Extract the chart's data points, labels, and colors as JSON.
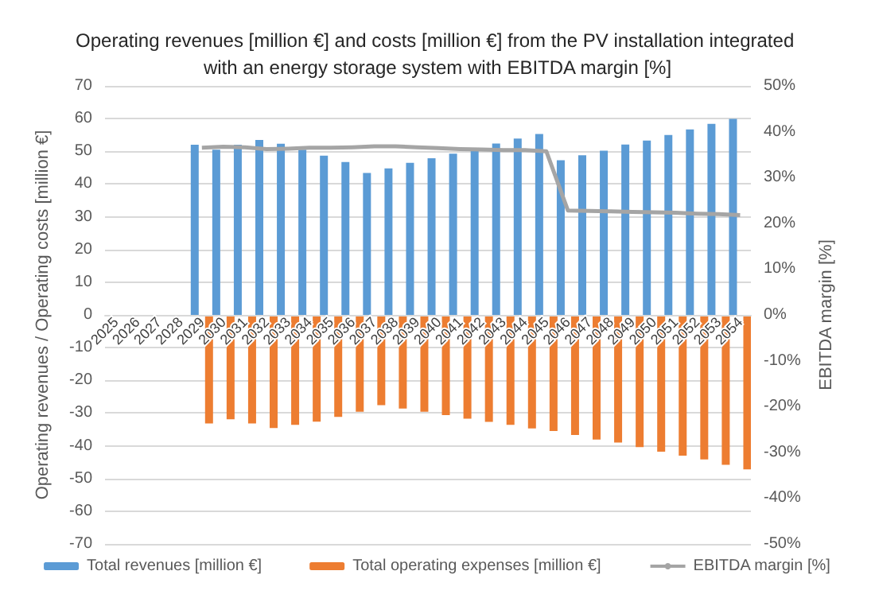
{
  "chart_data": {
    "type": "bar",
    "title": "Operating revenues [million €] and costs [million €] from the PV installation integrated with an energy storage system with EBITDA margin [%]",
    "ylabel": "Operating revenues / Operating costs [million €]",
    "y2label": "EBITDA margin [%]",
    "categories": [
      "2025",
      "2026",
      "2027",
      "2028",
      "2029",
      "2030",
      "2031",
      "2032",
      "2033",
      "2034",
      "2035",
      "2036",
      "2037",
      "2038",
      "2039",
      "2040",
      "2041",
      "2042",
      "2043",
      "2044",
      "2045",
      "2046",
      "2047",
      "2048",
      "2049",
      "2050",
      "2051",
      "2052",
      "2053",
      "2054"
    ],
    "series": [
      {
        "name": "Total revenues [million €]",
        "color": "#5b9bd5",
        "values": [
          null,
          null,
          null,
          null,
          52,
          50.5,
          52,
          53.5,
          52.3,
          50.5,
          48.7,
          46.7,
          43.4,
          44.8,
          46.5,
          47.9,
          49.3,
          50.4,
          52.4,
          53.9,
          55.3,
          47.3,
          48.8,
          50.2,
          52.1,
          53.3,
          55,
          56.7,
          58.4,
          59.9
        ]
      },
      {
        "name": "Total operating expenses [million €]",
        "color": "#ed7d31",
        "values": [
          null,
          null,
          null,
          null,
          -33.2,
          -31.9,
          -33.2,
          -34.6,
          -33.6,
          -32.6,
          -31.2,
          -29.6,
          -27.6,
          -28.6,
          -29.6,
          -30.6,
          -31.7,
          -32.7,
          -33.6,
          -34.7,
          -35.5,
          -36.7,
          -38.1,
          -39,
          -40.4,
          -41.8,
          -43,
          -44.2,
          -45.8,
          -47.2
        ]
      },
      {
        "name": "EBITDA margin [%]",
        "type": "line",
        "axis": "y2",
        "color": "#a5a5a5",
        "values": [
          null,
          null,
          null,
          null,
          36.5,
          36.7,
          36.6,
          36.2,
          36.3,
          36.5,
          36.5,
          36.6,
          36.8,
          36.8,
          36.6,
          36.4,
          36.2,
          36.1,
          36,
          36,
          35.7,
          22.8,
          22.7,
          22.6,
          22.5,
          22.4,
          22.3,
          22.1,
          22,
          21.8
        ]
      }
    ],
    "ylim": [
      -70,
      70
    ],
    "yticks": [
      -70,
      -60,
      -50,
      -40,
      -30,
      -20,
      -10,
      0,
      10,
      20,
      30,
      40,
      50,
      60,
      70
    ],
    "y2lim": [
      -50,
      50
    ],
    "y2ticks": [
      {
        "value": -50,
        "label": "-50%"
      },
      {
        "value": -40,
        "label": "-40%"
      },
      {
        "value": -30,
        "label": "-30%"
      },
      {
        "value": -20,
        "label": "-20%"
      },
      {
        "value": -10,
        "label": "-10%"
      },
      {
        "value": 0,
        "label": "0%"
      },
      {
        "value": 10,
        "label": "10%"
      },
      {
        "value": 20,
        "label": "20%"
      },
      {
        "value": 30,
        "label": "30%"
      },
      {
        "value": 40,
        "label": "40%"
      },
      {
        "value": 50,
        "label": "50%"
      }
    ],
    "grid": "y",
    "legend": "bottom",
    "marker": "none"
  }
}
